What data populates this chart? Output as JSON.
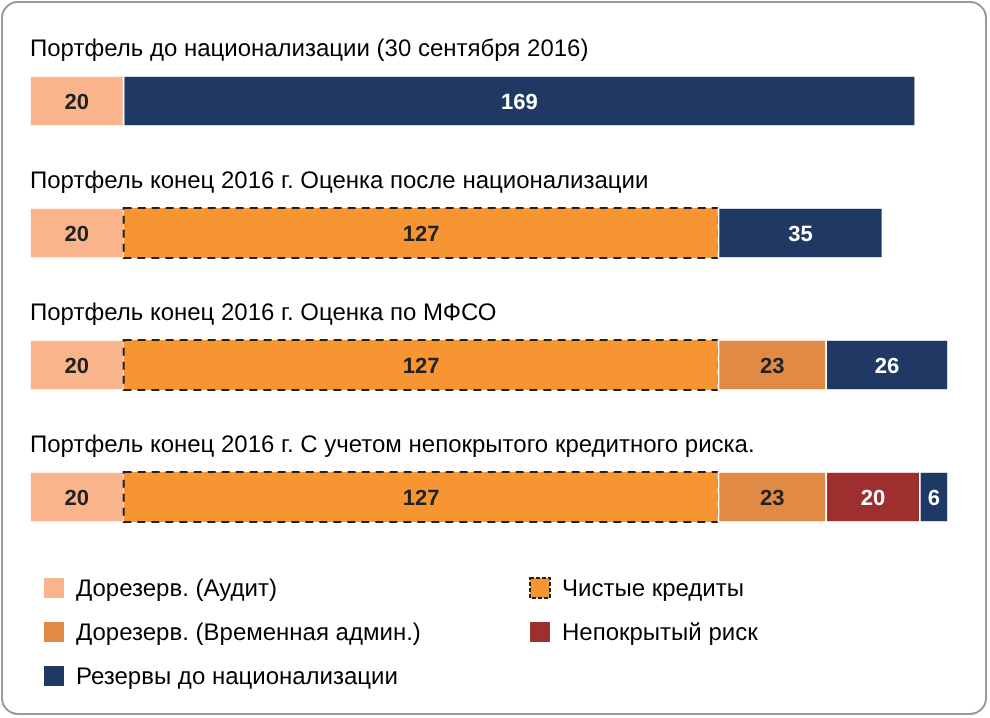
{
  "chart_data": {
    "type": "bar",
    "orientation": "horizontal",
    "stacked": true,
    "data_labels": true,
    "legend": "bottom",
    "categories": [
      "Портфель до национализации (30 сентября 2016)",
      "Портфель конец 2016 г. Оценка после национализации",
      "Портфель конец 2016 г. Оценка по МФСО",
      "Портфель конец 2016 г. С учетом непокрытого кредитного риска."
    ],
    "series": [
      {
        "name": "Дорезерв. (Аудит)",
        "color": "#f9b48c",
        "values": [
          20,
          20,
          20,
          20
        ]
      },
      {
        "name": "Чистые кредиты",
        "color": "#f79532",
        "line_style": "dashed",
        "values": [
          null,
          127,
          127,
          127
        ]
      },
      {
        "name": "Дорезерв. (Временная админ.)",
        "color": "#e08a45",
        "values": [
          null,
          null,
          23,
          23
        ]
      },
      {
        "name": "Непокрытый риск",
        "color": "#9e2f2f",
        "values": [
          null,
          null,
          null,
          20
        ]
      },
      {
        "name": "Резервы до национализации",
        "color": "#1f3864",
        "values": [
          169,
          35,
          26,
          6
        ]
      }
    ]
  }
}
